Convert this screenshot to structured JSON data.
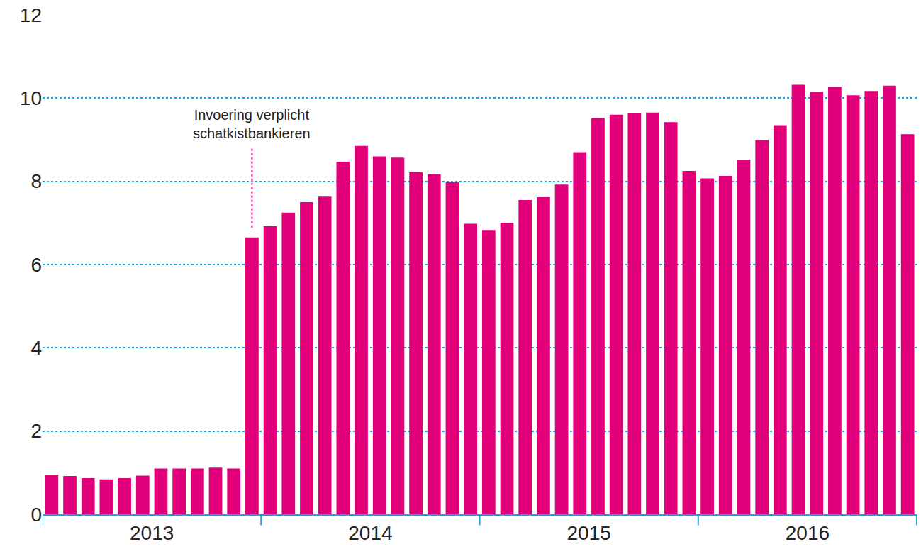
{
  "chart_data": {
    "type": "bar",
    "categories": [
      null,
      null,
      null,
      null,
      null,
      "2013",
      null,
      null,
      null,
      null,
      null,
      null,
      null,
      null,
      null,
      null,
      null,
      "2014",
      null,
      null,
      null,
      null,
      null,
      null,
      null,
      null,
      null,
      null,
      null,
      "2015",
      null,
      null,
      null,
      null,
      null,
      null,
      null,
      null,
      null,
      null,
      null,
      "2016",
      null,
      null,
      null,
      null,
      null,
      null
    ],
    "values": [
      0.95,
      0.92,
      0.87,
      0.84,
      0.87,
      0.93,
      1.1,
      1.1,
      1.1,
      1.12,
      1.1,
      6.65,
      6.92,
      7.25,
      7.5,
      7.63,
      8.47,
      8.85,
      8.6,
      8.57,
      8.22,
      8.17,
      7.98,
      6.98,
      6.83,
      7.0,
      7.55,
      7.62,
      7.92,
      8.7,
      9.52,
      9.6,
      9.63,
      9.65,
      9.42,
      8.25,
      8.07,
      8.13,
      8.52,
      8.99,
      9.35,
      10.32,
      10.15,
      10.27,
      10.07,
      10.17,
      10.3,
      9.13
    ],
    "color": "#e2007a",
    "ylim": [
      0,
      12
    ],
    "yticks": [
      0,
      2,
      4,
      6,
      8,
      10,
      12
    ],
    "grid": true,
    "annotations": [
      {
        "text": "Invoering verplicht\nschatkistbankieren",
        "x": 11
      }
    ]
  }
}
